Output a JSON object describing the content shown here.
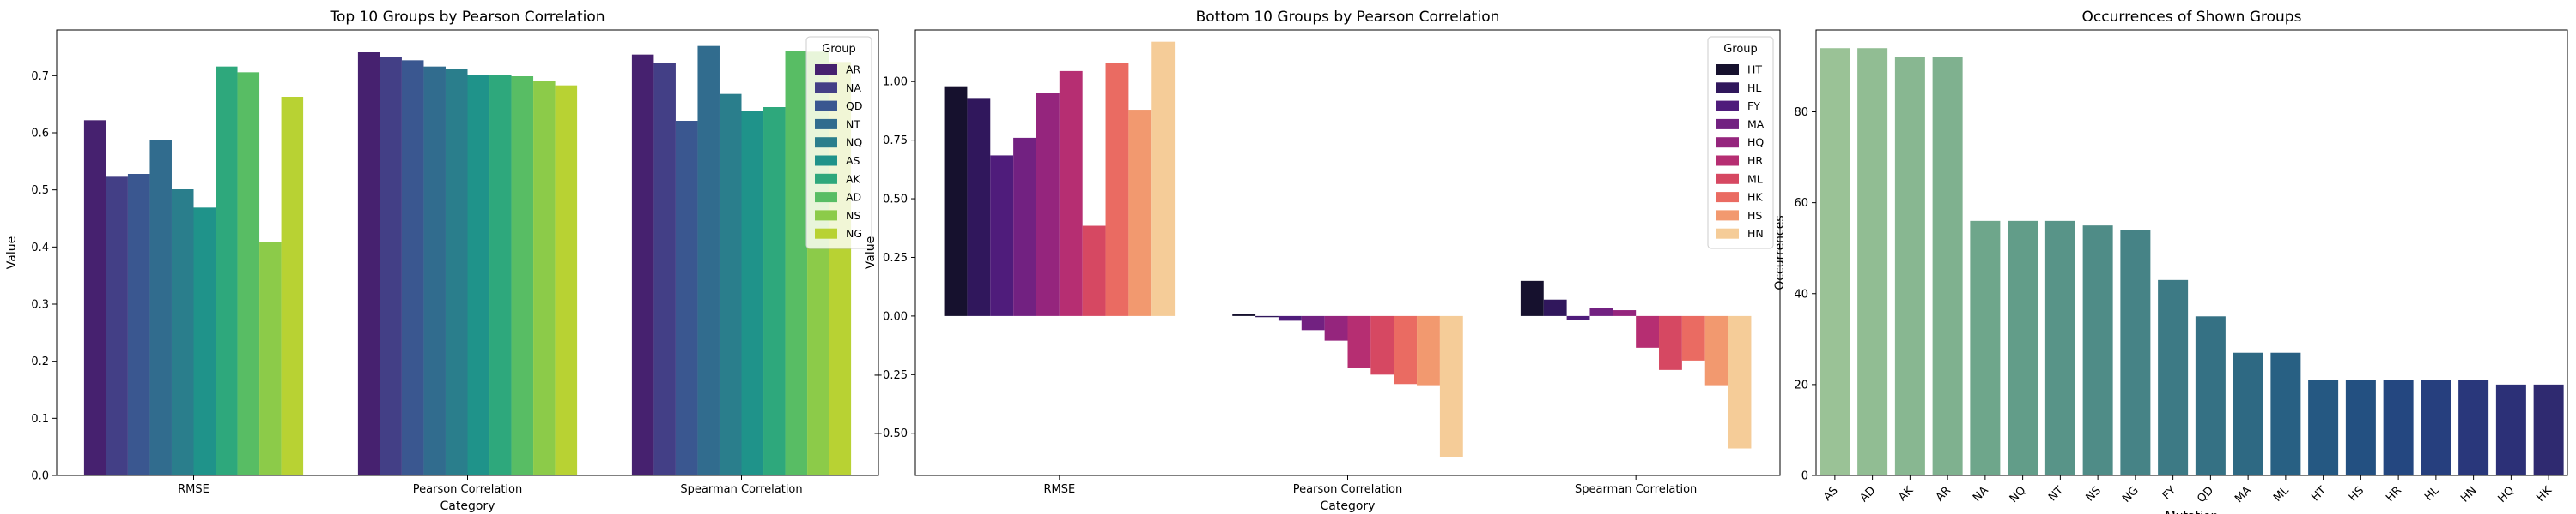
{
  "chart_data": [
    {
      "type": "bar",
      "title": "Top 10 Groups by Pearson Correlation",
      "xlabel": "Category",
      "ylabel": "Value",
      "ylim": [
        0,
        0.78
      ],
      "yticks": [
        "0.0",
        "0.1",
        "0.2",
        "0.3",
        "0.4",
        "0.5",
        "0.6",
        "0.7"
      ],
      "categories": [
        "RMSE",
        "Pearson Correlation",
        "Spearman Correlation"
      ],
      "legend_title": "Group",
      "legend_position": "top-right",
      "grid": false,
      "series": [
        {
          "name": "AR",
          "color": "#46216f",
          "values": [
            0.622,
            0.741,
            0.737
          ]
        },
        {
          "name": "NA",
          "color": "#433f86",
          "values": [
            0.523,
            0.732,
            0.722
          ]
        },
        {
          "name": "QD",
          "color": "#3a5790",
          "values": [
            0.528,
            0.727,
            0.621
          ]
        },
        {
          "name": "NT",
          "color": "#316c8e",
          "values": [
            0.587,
            0.716,
            0.752
          ]
        },
        {
          "name": "NQ",
          "color": "#2a7e8c",
          "values": [
            0.501,
            0.711,
            0.668
          ]
        },
        {
          "name": "AS",
          "color": "#1f938a",
          "values": [
            0.469,
            0.701,
            0.639
          ]
        },
        {
          "name": "AK",
          "color": "#2ea87c",
          "values": [
            0.716,
            0.701,
            0.645
          ]
        },
        {
          "name": "AD",
          "color": "#58bd64",
          "values": [
            0.706,
            0.699,
            0.744
          ]
        },
        {
          "name": "NS",
          "color": "#8ccb49",
          "values": [
            0.409,
            0.69,
            0.742
          ]
        },
        {
          "name": "NG",
          "color": "#b8d233",
          "values": [
            0.663,
            0.683,
            0.724
          ]
        }
      ]
    },
    {
      "type": "bar",
      "title": "Bottom 10 Groups by Pearson Correlation",
      "xlabel": "Category",
      "ylabel": "Value",
      "ylim": [
        -0.68,
        1.22
      ],
      "yticks": [
        "−0.50",
        "−0.25",
        "0.00",
        "0.25",
        "0.50",
        "0.75",
        "1.00",
        "1.25"
      ],
      "categories": [
        "RMSE",
        "Pearson Correlation",
        "Spearman Correlation"
      ],
      "legend_title": "Group",
      "legend_position": "top-right",
      "grid": false,
      "series": [
        {
          "name": "HT",
          "color": "#16112e",
          "values": [
            0.98,
            0.01,
            0.15
          ]
        },
        {
          "name": "HL",
          "color": "#30175c",
          "values": [
            0.93,
            -0.005,
            0.07
          ]
        },
        {
          "name": "FY",
          "color": "#4f1c7b",
          "values": [
            0.685,
            -0.02,
            -0.015
          ]
        },
        {
          "name": "MA",
          "color": "#722181",
          "values": [
            0.76,
            -0.06,
            0.035
          ]
        },
        {
          "name": "HQ",
          "color": "#95257d",
          "values": [
            0.95,
            -0.105,
            0.025
          ]
        },
        {
          "name": "HR",
          "color": "#b62e72",
          "values": [
            1.045,
            -0.22,
            -0.135
          ]
        },
        {
          "name": "ML",
          "color": "#d64862",
          "values": [
            0.385,
            -0.25,
            -0.23
          ]
        },
        {
          "name": "HK",
          "color": "#ea6b62",
          "values": [
            1.08,
            -0.29,
            -0.19
          ]
        },
        {
          "name": "HS",
          "color": "#f2996f",
          "values": [
            0.88,
            -0.295,
            -0.295
          ]
        },
        {
          "name": "HN",
          "color": "#f5cc98",
          "values": [
            1.17,
            -0.6,
            -0.565
          ]
        }
      ]
    },
    {
      "type": "bar",
      "title": "Occurrences of Shown Groups",
      "xlabel": "Mutation",
      "ylabel": "Occurrences",
      "ylim": [
        0,
        98
      ],
      "yticks": [
        "0",
        "20",
        "40",
        "60",
        "80"
      ],
      "grid": false,
      "categories": [
        "AS",
        "AD",
        "AK",
        "AR",
        "NA",
        "NQ",
        "NT",
        "NS",
        "NG",
        "FY",
        "QD",
        "MA",
        "ML",
        "HT",
        "HS",
        "HR",
        "HL",
        "HN",
        "HQ",
        "HK"
      ],
      "values": [
        94,
        94,
        92,
        92,
        56,
        56,
        56,
        55,
        54,
        43,
        35,
        27,
        27,
        21,
        21,
        21,
        21,
        21,
        20,
        20
      ],
      "colors": [
        "#9ac296",
        "#91bd93",
        "#88b791",
        "#7fb18f",
        "#6ea68b",
        "#629d89",
        "#589488",
        "#4f8c87",
        "#468386",
        "#3d7a85",
        "#357184",
        "#2e6983",
        "#286083",
        "#255882",
        "#235081",
        "#244780",
        "#263f7e",
        "#29377b",
        "#2c3077",
        "#2f2a70"
      ]
    }
  ]
}
